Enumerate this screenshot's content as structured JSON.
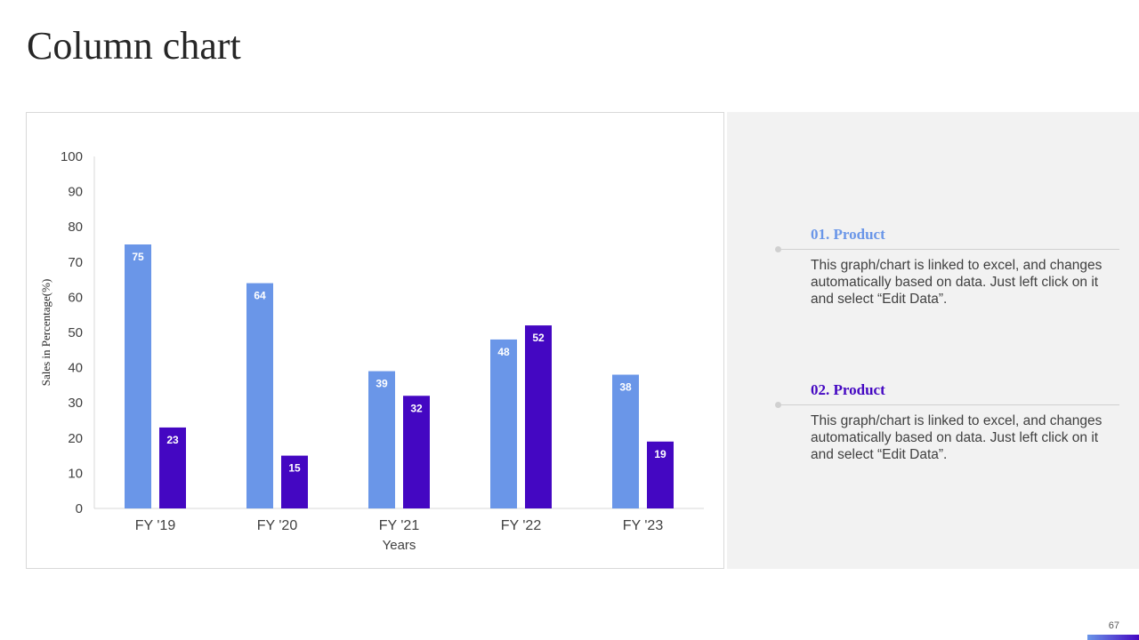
{
  "slide": {
    "title": "Column chart",
    "page_number": "67"
  },
  "colors": {
    "series_1": "#6a96e8",
    "series_2": "#4407c2",
    "axis_text": "#404040",
    "panel_bg": "#f2f2f2"
  },
  "chart_data": {
    "type": "bar",
    "title": "",
    "xlabel": "Years",
    "ylabel": "Sales in Percentage(%)",
    "ylim": [
      0,
      100
    ],
    "yticks": [
      0,
      10,
      20,
      30,
      40,
      50,
      60,
      70,
      80,
      90,
      100
    ],
    "grid": false,
    "legend": "none",
    "categories": [
      "FY '19",
      "FY '20",
      "FY '21",
      "FY '22",
      "FY '23"
    ],
    "series": [
      {
        "values": [
          75,
          64,
          39,
          48,
          38
        ],
        "color": "#6a96e8"
      },
      {
        "values": [
          23,
          15,
          32,
          52,
          19
        ],
        "color": "#4407c2"
      }
    ]
  },
  "products": [
    {
      "title": "01. Product",
      "description": "This graph/chart is linked to excel, and changes automatically based on data. Just left click on it and select “Edit Data”."
    },
    {
      "title": "02. Product",
      "description": "This graph/chart is linked to excel, and changes automatically based on data. Just left click on it and select “Edit Data”."
    }
  ]
}
